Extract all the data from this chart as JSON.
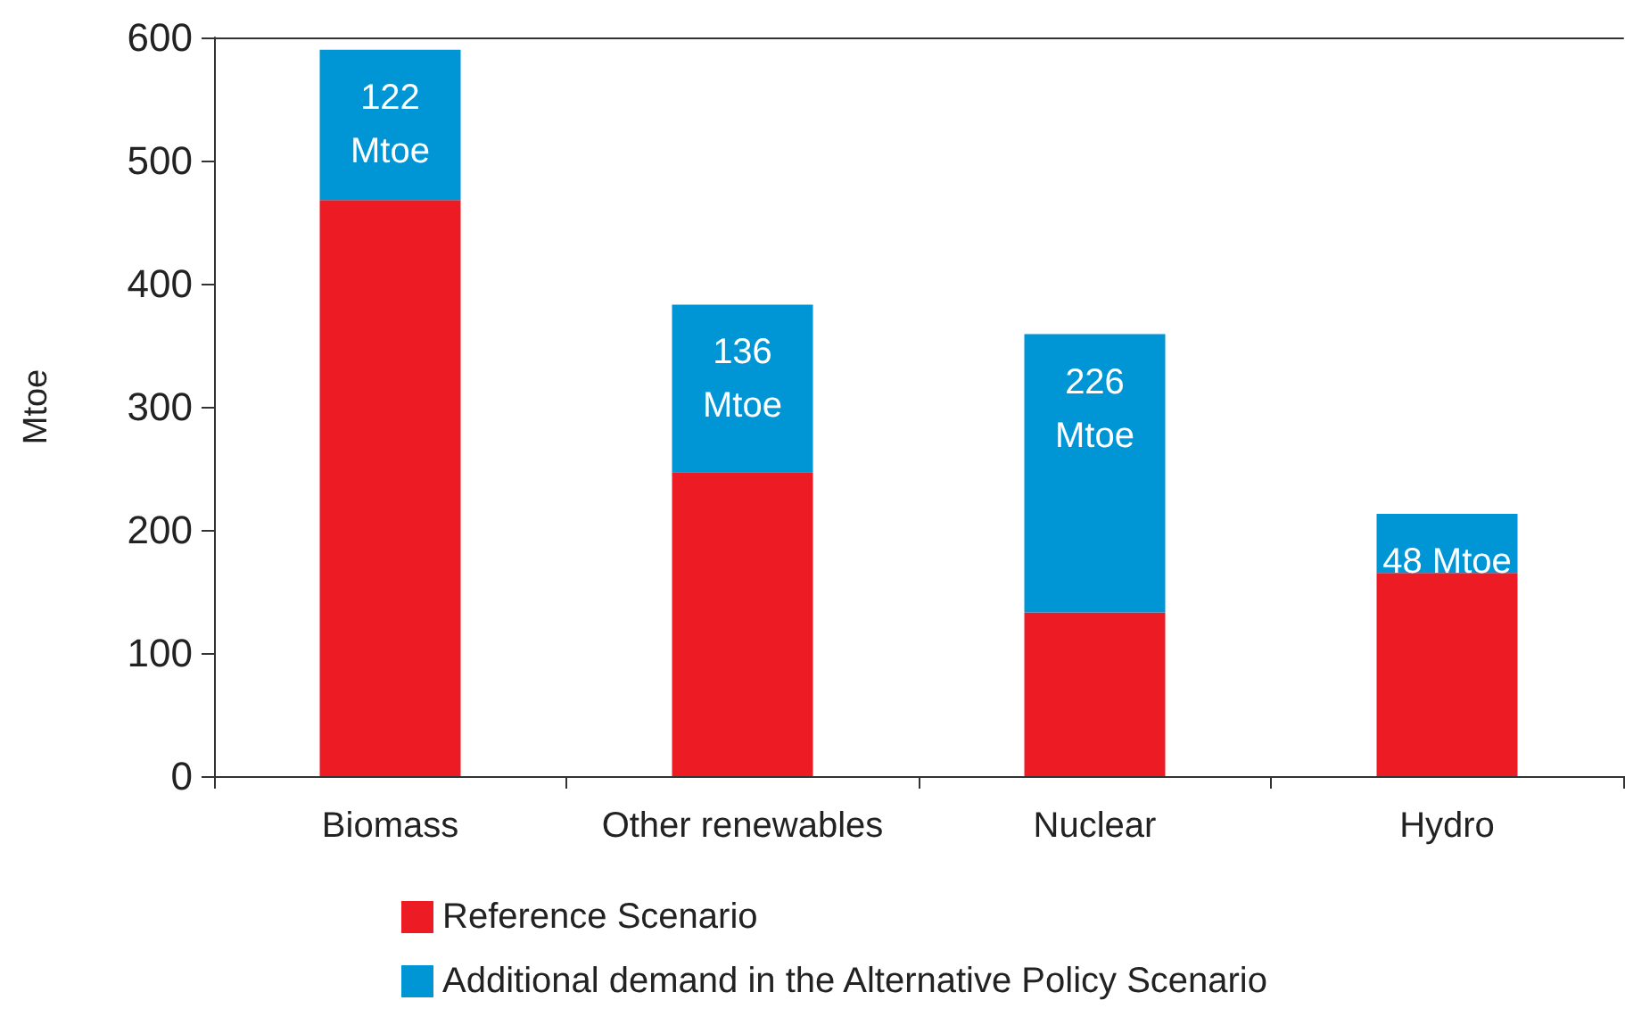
{
  "chart_data": {
    "type": "bar",
    "stacked": true,
    "ylabel": "Mtoe",
    "categories": [
      "Biomass",
      "Other renewables",
      "Nuclear",
      "Hydro"
    ],
    "series": [
      {
        "name": "Reference Scenario",
        "color": "#ed1c24",
        "values": [
          468,
          247,
          133,
          165
        ]
      },
      {
        "name": "Additional demand in the Alternative Policy Scenario",
        "color": "#0096d6",
        "values": [
          122,
          136,
          226,
          48
        ],
        "value_labels": [
          "122\nMtoe",
          "136\nMtoe",
          "226\nMtoe",
          "48 Mtoe"
        ]
      }
    ],
    "ylim": [
      0,
      600
    ],
    "yticks": [
      0,
      100,
      200,
      300,
      400,
      500,
      600
    ],
    "grid": false,
    "legend": "bottom"
  }
}
